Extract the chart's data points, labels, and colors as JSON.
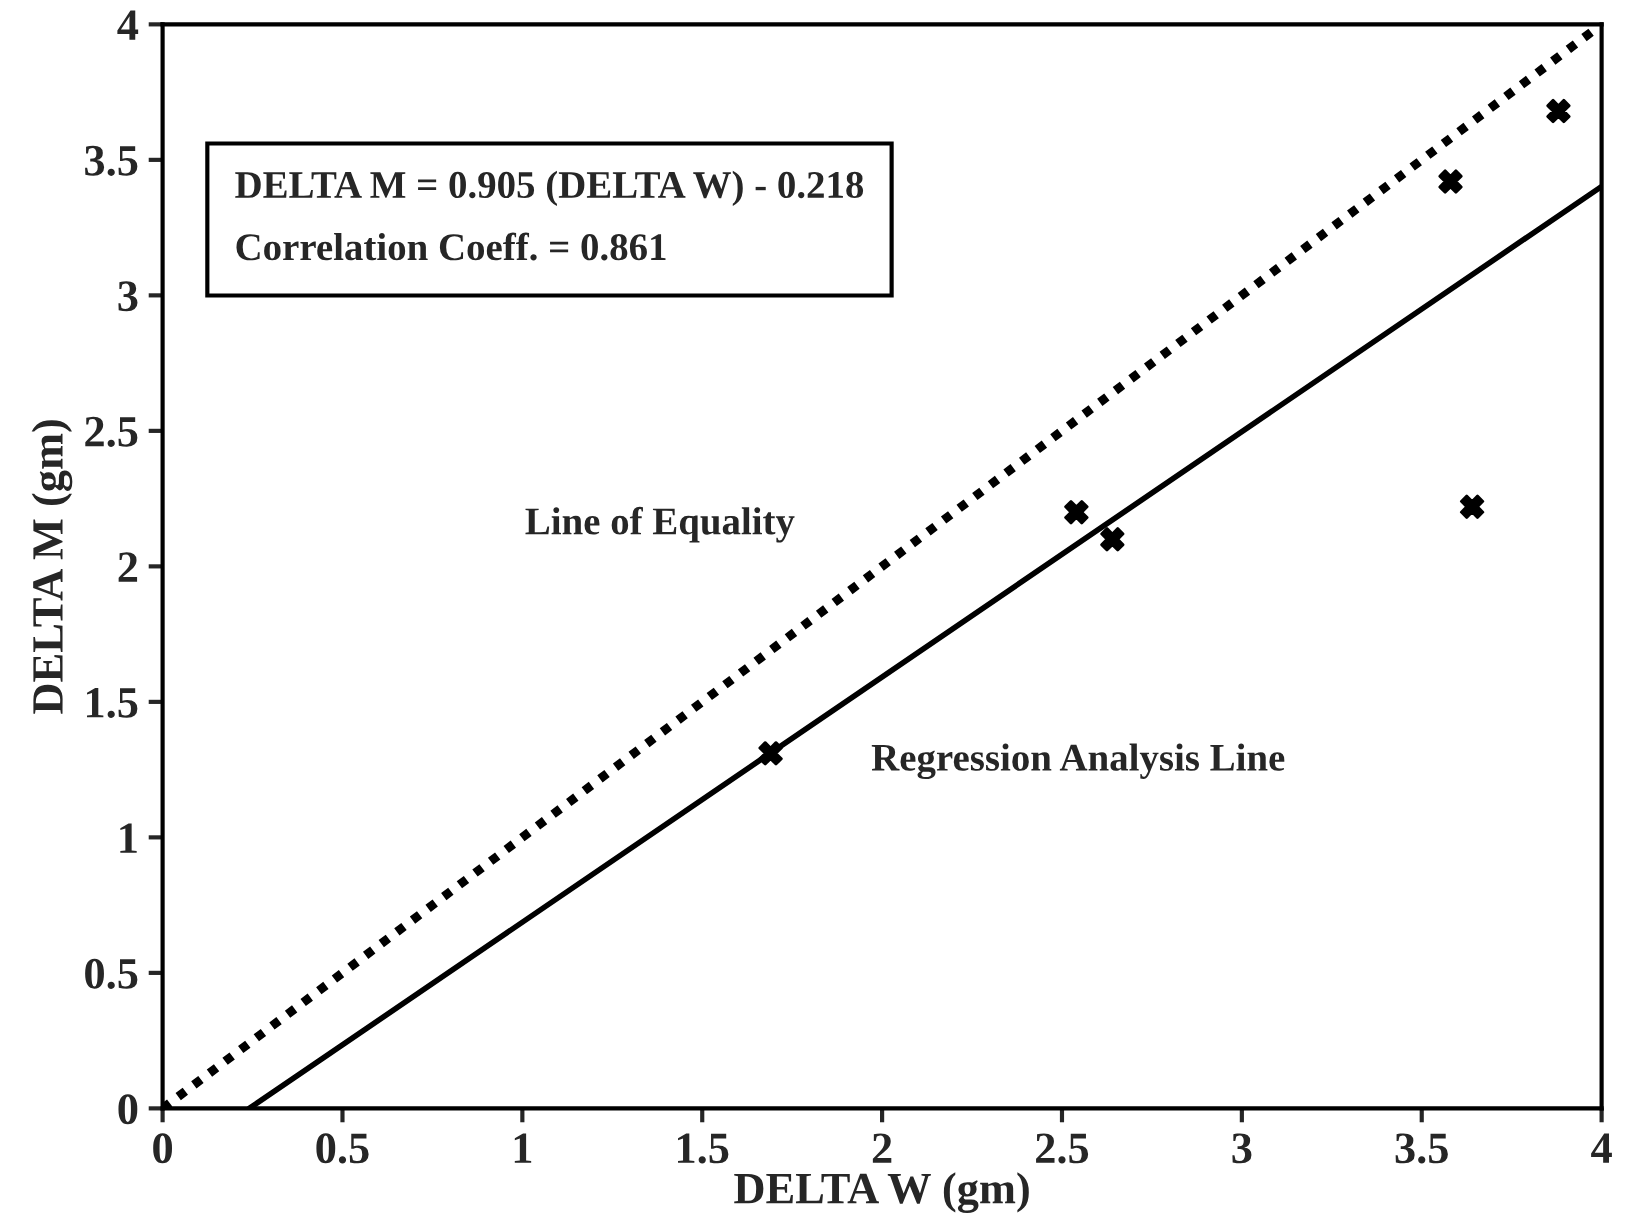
{
  "chart_data": {
    "type": "scatter",
    "xlabel": "DELTA W (gm)",
    "ylabel": "DELTA M (gm)",
    "xlim": [
      0,
      4
    ],
    "ylim": [
      0,
      4
    ],
    "xticks": [
      0,
      0.5,
      1,
      1.5,
      2,
      2.5,
      3,
      3.5,
      4
    ],
    "yticks": [
      0,
      0.5,
      1,
      1.5,
      2,
      2.5,
      3,
      3.5,
      4
    ],
    "grid": false,
    "legend": false,
    "series": [
      {
        "color": "#000000",
        "marker": "cross",
        "x": [
          1.69,
          2.54,
          2.64,
          3.58,
          3.64,
          3.88
        ],
        "values": [
          1.31,
          2.2,
          2.1,
          3.42,
          2.22,
          3.68
        ]
      },
      {
        "type": "line",
        "name": "Line of Equality",
        "color": "#000000",
        "line_style": "dotted",
        "marker": "none",
        "x": [
          0,
          4
        ],
        "values": [
          0,
          4
        ]
      },
      {
        "type": "line",
        "name": "Regression Analysis Line",
        "color": "#000000",
        "line_style": "solid",
        "marker": "none",
        "x": [
          0.241,
          4
        ],
        "values": [
          0,
          3.402
        ]
      }
    ],
    "annotations": [
      "DELTA M = 0.905 (DELTA W) - 0.218",
      "Correlation Coeff. = 0.861"
    ]
  }
}
